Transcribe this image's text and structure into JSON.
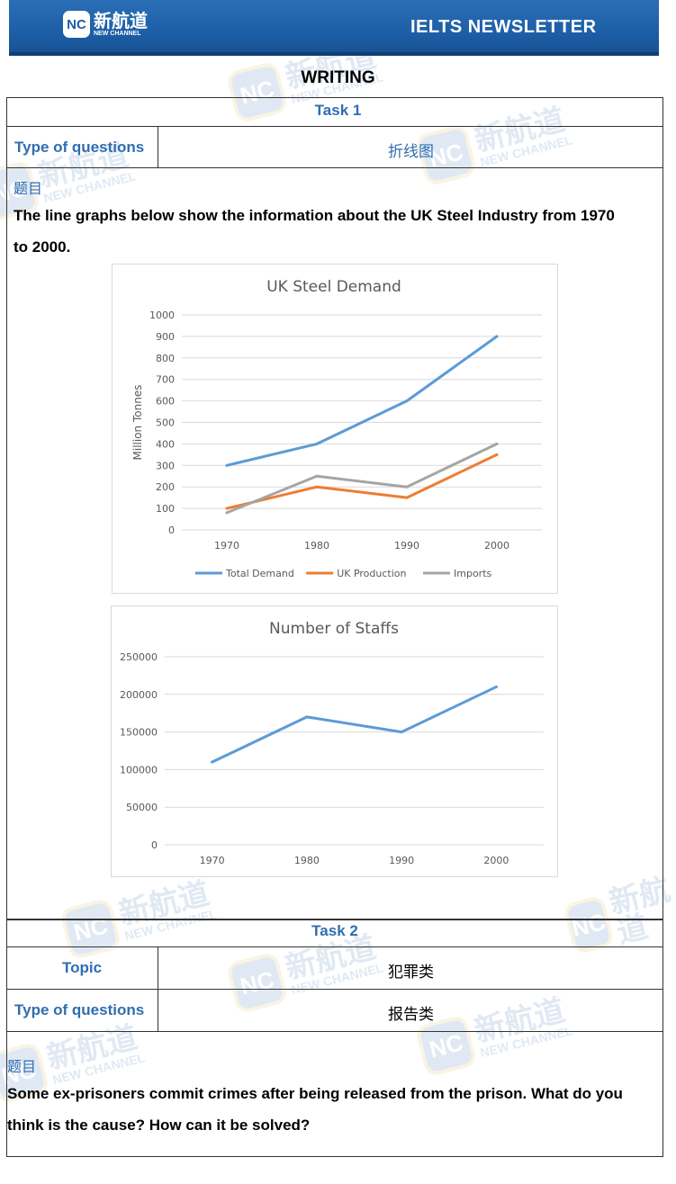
{
  "header": {
    "logo_mark": "NC",
    "logo_cn": "新航道",
    "logo_en": "NEW CHANNEL",
    "newsletter_title": "IELTS NEWSLETTER"
  },
  "section_title": "WRITING",
  "task1": {
    "heading": "Task 1",
    "type_label": "Type of questions",
    "type_value": "折线图",
    "prompt_label": "题目",
    "prompt_line1": "The line graphs below show the information about the UK Steel Industry from 1970",
    "prompt_line2": "to 2000."
  },
  "task2": {
    "heading": "Task 2",
    "topic_label": "Topic",
    "topic_value": "犯罪类",
    "type_label": "Type of questions",
    "type_value": "报告类",
    "prompt_label": "题目",
    "prompt_line1": "Some ex-prisoners commit crimes after being released from the prison. What do you",
    "prompt_line2": "think is the cause? How can it be solved?"
  },
  "watermark": {
    "mark": "NC",
    "cn": "新航道",
    "en": "NEW CHANNEL"
  },
  "chart_data": [
    {
      "type": "line",
      "title": "UK Steel Demand",
      "xlabel": "",
      "ylabel": "Million Tonnes",
      "categories": [
        "1970",
        "1980",
        "1990",
        "2000"
      ],
      "ylim": [
        0,
        1000
      ],
      "yticks": [
        0,
        100,
        200,
        300,
        400,
        500,
        600,
        700,
        800,
        900,
        1000
      ],
      "grid": true,
      "legend": "bottom",
      "series": [
        {
          "name": "Total Demand",
          "color": "#5b9bd5",
          "values": [
            300,
            400,
            600,
            900
          ]
        },
        {
          "name": "UK Production",
          "color": "#ed7d31",
          "values": [
            100,
            200,
            150,
            350
          ]
        },
        {
          "name": "Imports",
          "color": "#a5a5a5",
          "values": [
            80,
            250,
            200,
            400
          ]
        }
      ]
    },
    {
      "type": "line",
      "title": "Number of Staffs",
      "xlabel": "",
      "ylabel": "",
      "categories": [
        "1970",
        "1980",
        "1990",
        "2000"
      ],
      "ylim": [
        0,
        250000
      ],
      "yticks": [
        0,
        50000,
        100000,
        150000,
        200000,
        250000
      ],
      "grid": true,
      "legend": "none",
      "series": [
        {
          "color": "#5b9bd5",
          "values": [
            110000,
            170000,
            150000,
            210000
          ]
        }
      ]
    }
  ]
}
